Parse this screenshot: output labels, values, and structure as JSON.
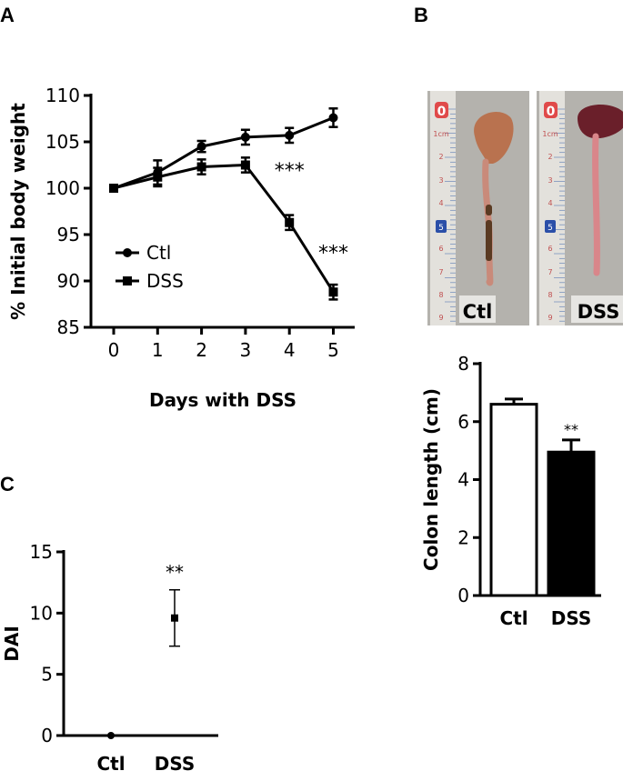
{
  "panels": {
    "a": "A",
    "b": "B",
    "c": "C"
  },
  "chart_data": [
    {
      "type": "line",
      "panel": "A",
      "title": "",
      "xlabel": "Days with DSS",
      "ylabel": "% Initial body weight",
      "x": [
        0,
        1,
        2,
        3,
        4,
        5
      ],
      "xlim": [
        -0.5,
        5.3
      ],
      "ylim": [
        85,
        110
      ],
      "yticks": [
        85,
        90,
        95,
        100,
        105,
        110
      ],
      "xticks": [
        0,
        1,
        2,
        3,
        4,
        5
      ],
      "legend": "left-center",
      "series": [
        {
          "name": "Ctl",
          "marker": "circle",
          "values": [
            100.0,
            101.7,
            104.5,
            105.5,
            105.7,
            107.6
          ],
          "errors": [
            0.3,
            1.3,
            0.6,
            0.8,
            0.8,
            1.0
          ]
        },
        {
          "name": "DSS",
          "marker": "square",
          "values": [
            100.0,
            101.2,
            102.3,
            102.5,
            96.3,
            88.8
          ],
          "errors": [
            0.3,
            1.0,
            0.8,
            0.8,
            0.8,
            0.8
          ]
        }
      ],
      "annotations": [
        {
          "text": "***",
          "x": 4,
          "y": 101.2
        },
        {
          "text": "***",
          "x": 5,
          "y": 92.3
        }
      ]
    },
    {
      "type": "bar",
      "panel": "B",
      "title": "",
      "xlabel": "",
      "ylabel": "Colon length (cm)",
      "categories": [
        "Ctl",
        "DSS"
      ],
      "values": [
        6.6,
        4.95
      ],
      "errors": [
        0.18,
        0.42
      ],
      "fills": [
        "#ffffff",
        "#000000"
      ],
      "ylim": [
        0,
        8
      ],
      "yticks": [
        0,
        2,
        4,
        6,
        8
      ],
      "annotations": [
        {
          "text": "**",
          "category": "DSS"
        }
      ]
    },
    {
      "type": "scatter",
      "panel": "C",
      "title": "",
      "xlabel": "",
      "ylabel": "DAI",
      "categories": [
        "Ctl",
        "DSS"
      ],
      "values": [
        0,
        9.6
      ],
      "errors": [
        0,
        2.3
      ],
      "markers": [
        "circle",
        "square"
      ],
      "ylim": [
        0,
        15
      ],
      "yticks": [
        0,
        5,
        10,
        15
      ],
      "annotations": [
        {
          "text": "**",
          "category": "DSS"
        }
      ]
    }
  ],
  "photo": {
    "labels": [
      "Ctl",
      "DSS"
    ],
    "ruler_marks": [
      "0",
      "1cm",
      "2",
      "3",
      "4",
      "5",
      "6",
      "7",
      "8",
      "9"
    ],
    "colors": {
      "background": "#b4b2ad",
      "ruler": "#e3e1dc",
      "ruler_red": "#e04a4a",
      "ruler_blue": "#2b4fa8",
      "cecum_ctl": "#b9724f",
      "cecum_dss": "#6a1f2a",
      "colon_ctl": "#c98a7a",
      "colon_dss": "#d9868a",
      "feces": "#5a3a22"
    }
  }
}
